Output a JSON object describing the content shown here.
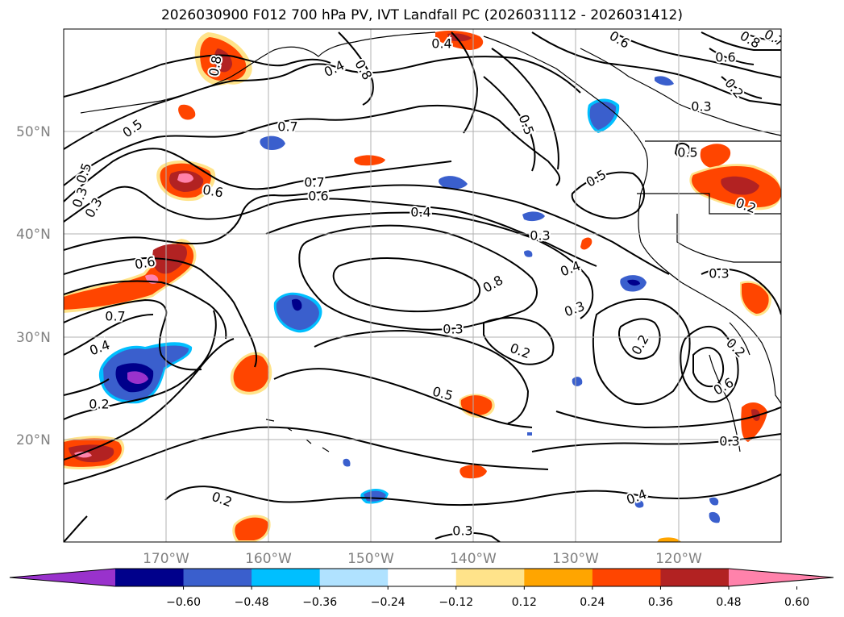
{
  "title": "2026030900 F012 700 hPa PV, IVT Landfall PC (2026031112 - 2026031412)",
  "map": {
    "lat_labels": [
      "50°N",
      "40°N",
      "30°N",
      "20°N"
    ],
    "lon_labels": [
      "170°W",
      "160°W",
      "150°W",
      "140°W",
      "130°W",
      "120°W"
    ],
    "contour_labels": [
      "0.4",
      "0.4",
      "0.8",
      "0.8",
      "0.6",
      "0.6",
      "0.8",
      "0.7",
      "0.2",
      "0.3",
      "0.5",
      "0.5",
      "0.7",
      "0.7",
      "0.6",
      "0.6",
      "0.5",
      "0.4",
      "0.3",
      "0.4",
      "0.8",
      "0.6",
      "0.7",
      "0.3",
      "0.4",
      "0.3",
      "0.2",
      "0.2",
      "0.5",
      "0.6",
      "0.3",
      "0.2",
      "0.2",
      "0.4",
      "0.3",
      "0.5",
      "0.3",
      "0.5",
      "0.3",
      "0.2",
      "0.2",
      "0.3"
    ]
  },
  "colorbar": {
    "ticks": [
      "−0.60",
      "−0.48",
      "−0.36",
      "−0.24",
      "−0.12",
      "0.12",
      "0.24",
      "0.36",
      "0.48",
      "0.60"
    ],
    "colors": [
      "#9932cc",
      "#00008b",
      "#3a5fcd",
      "#00bfff",
      "#b0e2ff",
      "#ffffff",
      "#ffe38a",
      "#ffa500",
      "#ff4500",
      "#b22222",
      "#ff82ab"
    ]
  }
}
